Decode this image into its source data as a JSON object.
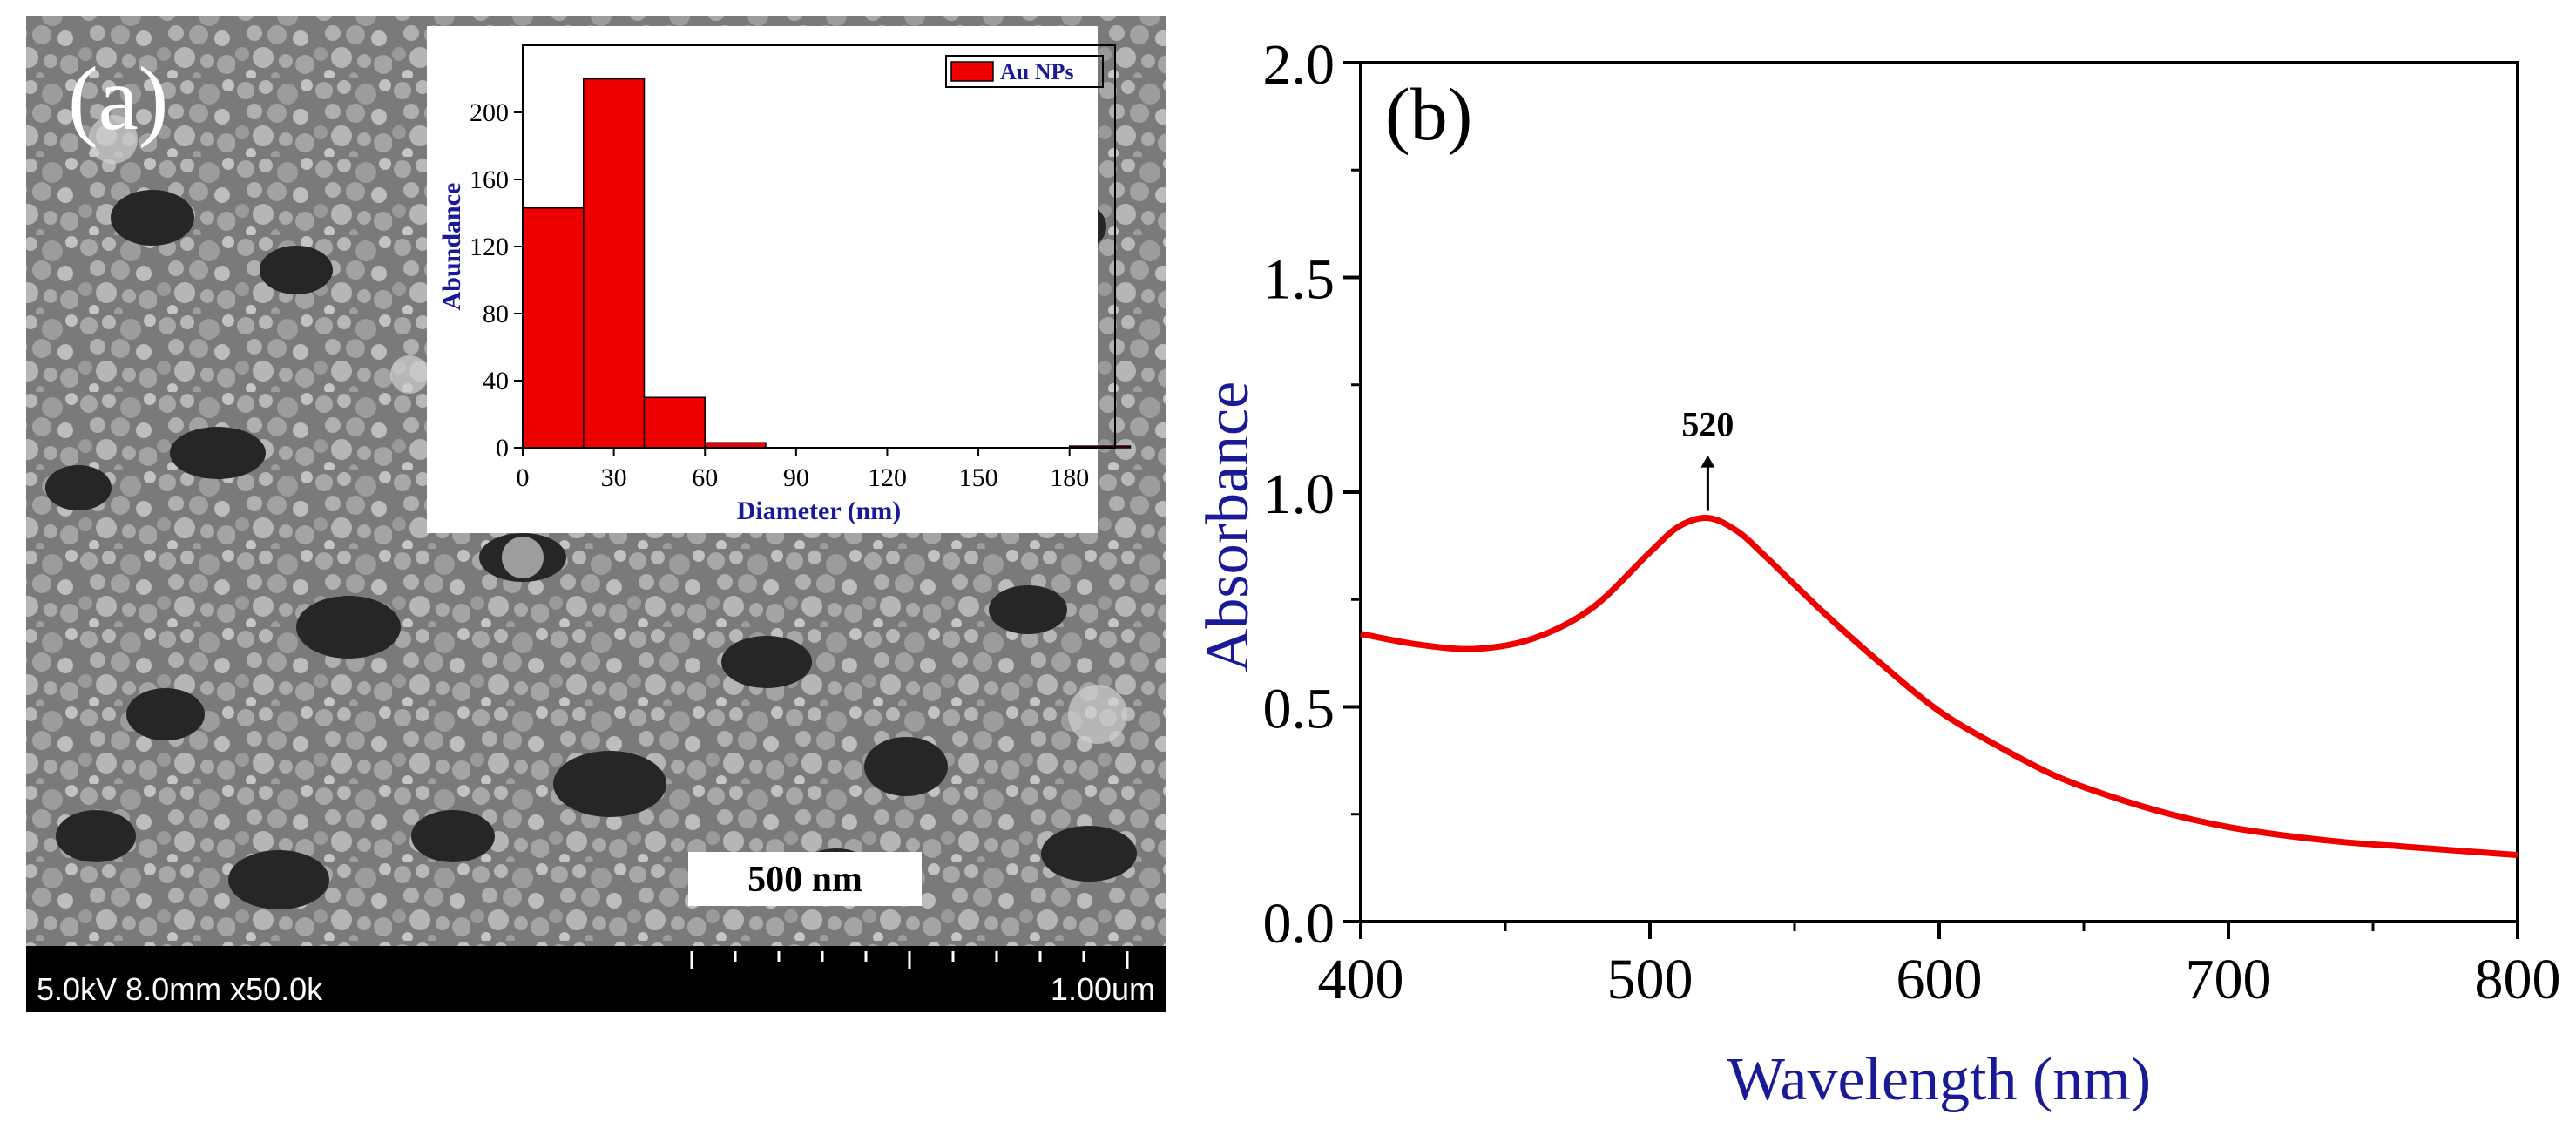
{
  "panel_a": {
    "label": "(a)",
    "scale_bar": "500 nm",
    "sem_info_left": "5.0kV 8.0mm x50.0k",
    "sem_info_right": "1.00um"
  },
  "panel_b": {
    "label": "(b)",
    "peak_label": "520"
  },
  "colors": {
    "histogram_bar": "#ee0000",
    "curve": "#ee0000",
    "axis_label": "#1a1a99",
    "sem_bg": "#6a6a6a",
    "sem_dark": "#2a2a2a"
  },
  "chart_data": [
    {
      "type": "bar",
      "title": "",
      "legend": [
        "Au NPs"
      ],
      "legend_position": "top-right",
      "xlabel": "Diameter (nm)",
      "ylabel": "Abundance",
      "x_ticks": [
        "0",
        "30",
        "60",
        "90",
        "120",
        "150",
        "180"
      ],
      "y_ticks": [
        "0",
        "40",
        "80",
        "120",
        "160",
        "200"
      ],
      "xlim": [
        0,
        195
      ],
      "ylim": [
        0,
        240
      ],
      "bins": [
        [
          0,
          20
        ],
        [
          20,
          40
        ],
        [
          40,
          60
        ],
        [
          60,
          80
        ],
        [
          180,
          200
        ]
      ],
      "values": [
        143,
        220,
        30,
        3,
        1
      ]
    },
    {
      "type": "line",
      "title": "",
      "xlabel": "Wavelength (nm)",
      "ylabel": "Absorbance",
      "x_ticks": [
        "400",
        "500",
        "600",
        "700",
        "800"
      ],
      "y_ticks": [
        "0.0",
        "0.5",
        "1.0",
        "1.5",
        "2.0"
      ],
      "xlim": [
        400,
        800
      ],
      "ylim": [
        0,
        2.0
      ],
      "annotation": {
        "text": "520",
        "x": 520,
        "y": 0.94
      },
      "series": [
        {
          "name": "Absorbance",
          "x": [
            400,
            420,
            440,
            460,
            480,
            500,
            510,
            520,
            530,
            540,
            560,
            580,
            600,
            620,
            640,
            660,
            680,
            700,
            720,
            740,
            760,
            780,
            800
          ],
          "y": [
            0.67,
            0.645,
            0.635,
            0.66,
            0.73,
            0.86,
            0.92,
            0.94,
            0.91,
            0.85,
            0.72,
            0.6,
            0.49,
            0.41,
            0.34,
            0.29,
            0.25,
            0.22,
            0.2,
            0.185,
            0.175,
            0.165,
            0.155
          ]
        }
      ]
    }
  ]
}
